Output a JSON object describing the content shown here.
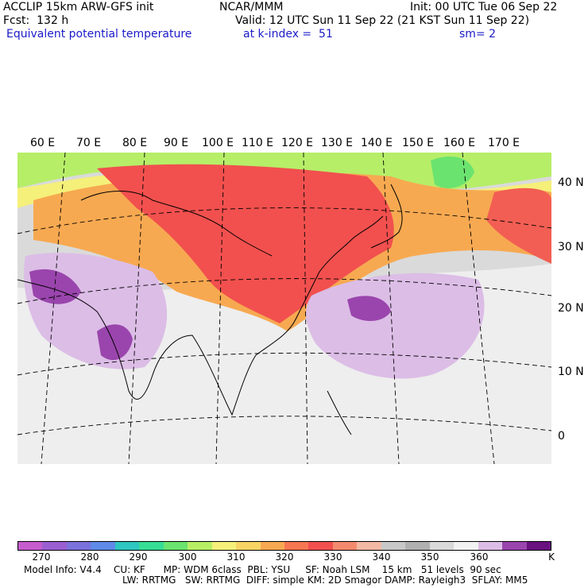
{
  "header": {
    "model_line": "ACCLIP 15km ARW-GFS init",
    "center": "NCAR/MMM",
    "init": "Init: 00 UTC Tue 06 Sep 22",
    "fcst": "Fcst:  132 h",
    "valid": "Valid: 12 UTC Sun 11 Sep 22 (21 KST Sun 11 Sep 22)",
    "field": "Equivalent potential temperature",
    "level": "at k-index =  51",
    "smooth": "sm= 2"
  },
  "map": {
    "lon_labels": [
      "60 E",
      "70 E",
      "80 E",
      "90 E",
      "100 E",
      "110 E",
      "120 E",
      "130 E",
      "140 E",
      "150 E",
      "160 E",
      "170 E"
    ],
    "lat_labels": [
      "40 N",
      "30 N",
      "20 N",
      "10 N",
      "0"
    ]
  },
  "colorbar": {
    "colors": [
      "#c65ccd",
      "#9b5fd1",
      "#7b72dc",
      "#5f8ae8",
      "#2ec7c0",
      "#35dd95",
      "#6be36f",
      "#b8ef66",
      "#f5f07a",
      "#f8d465",
      "#f7a951",
      "#f77652",
      "#f1504e",
      "#f38a6e",
      "#f4b9a4",
      "#c8c8c8",
      "#b0b0b0",
      "#d9d9d9",
      "#f1f1f1",
      "#dcbde6",
      "#9a45ad",
      "#6a1180"
    ],
    "tick_labels": [
      "270",
      "280",
      "290",
      "300",
      "310",
      "320",
      "330",
      "340",
      "350",
      "360",
      "K"
    ]
  },
  "footer": {
    "line1": "Model Info: V4.4    CU: KF      MP: WDM 6class  PBL: YSU     SF: Noah LSM    15 km   51 levels  90 sec",
    "line2": "LW: RRTMG   SW: RRTMG  DIFF: simple KM: 2D Smagor DAMP: Rayleigh3  SFLAY: MM5"
  }
}
